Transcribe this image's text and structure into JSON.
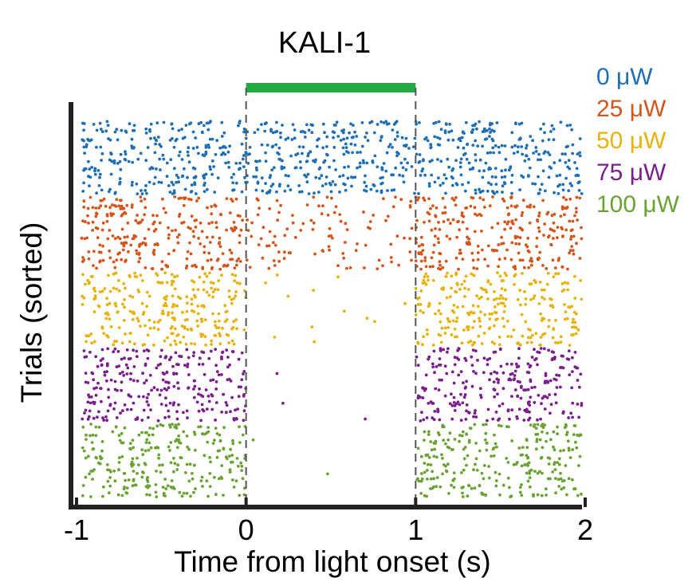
{
  "chart_data": {
    "type": "raster",
    "title": "KALI-1",
    "xlabel": "Time from light onset (s)",
    "ylabel": "Trials (sorted)",
    "xlim": [
      -1,
      2
    ],
    "xticks": [
      -1,
      0,
      1,
      2
    ],
    "xtick_labels": [
      "-1",
      "0",
      "1",
      "2"
    ],
    "light_period": {
      "start": 0,
      "end": 1,
      "color": "#22aa44"
    },
    "event_markers": [
      0,
      1
    ],
    "series": [
      {
        "name": "0 μW",
        "color": "#1f6fb5",
        "trial_band": [
          0,
          10
        ],
        "rate_before": 6.5,
        "rate_during": 6.5,
        "rate_after": 6.5
      },
      {
        "name": "25 μW",
        "color": "#d4561c",
        "trial_band": [
          10,
          20
        ],
        "rate_before": 6.5,
        "rate_during": 2.5,
        "rate_after": 6.5
      },
      {
        "name": "50 μW",
        "color": "#e8b20c",
        "trial_band": [
          20,
          30
        ],
        "rate_before": 6.5,
        "rate_during": 0.3,
        "rate_after": 6.5
      },
      {
        "name": "75 μW",
        "color": "#7a1f8c",
        "trial_band": [
          30,
          40
        ],
        "rate_before": 6.5,
        "rate_during": 0.08,
        "rate_after": 6.5
      },
      {
        "name": "100 μW",
        "color": "#6aa334",
        "trial_band": [
          40,
          50
        ],
        "rate_before": 6.5,
        "rate_during": 0.04,
        "rate_after": 6.5
      }
    ],
    "n_trials_total": 50,
    "legend_position": "top-right"
  }
}
